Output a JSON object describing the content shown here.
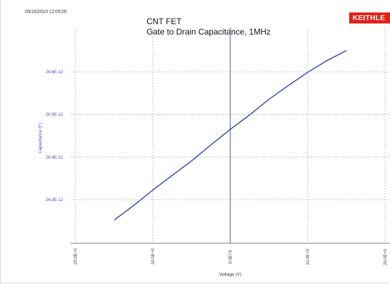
{
  "timestamp": "05/16/2010 12:05:05",
  "logo_text": "KEITHLE",
  "chart_data": {
    "type": "line",
    "title": "CNT FET",
    "subtitle": "Gate to Drain Capacitance, 1MHz",
    "xlabel": "Voltage (V)",
    "ylabel": "Capacitance (F)",
    "xlim": [
      -20,
      20
    ],
    "ylim": [
      2.62e-11,
      2.67e-11
    ],
    "x_ticks": [
      {
        "value": -20,
        "label": "-20.0E+0"
      },
      {
        "value": -10,
        "label": "-10.0E+0"
      },
      {
        "value": 0,
        "label": "0.0E+0"
      },
      {
        "value": 10,
        "label": "10.0E+0"
      },
      {
        "value": 20,
        "label": "20.0E+0"
      }
    ],
    "y_ticks": [
      {
        "value": 2.63e-11,
        "label": "26.3E-12"
      },
      {
        "value": 2.64e-11,
        "label": "26.4E-12"
      },
      {
        "value": 2.65e-11,
        "label": "26.5E-12"
      },
      {
        "value": 2.66e-11,
        "label": "26.6E-12"
      }
    ],
    "grid": true,
    "series": [
      {
        "color": "#3a4fb0",
        "x": [
          -15,
          -12.5,
          -10,
          -7.5,
          -5,
          -2.5,
          0,
          2.5,
          5,
          7.5,
          10,
          12.5,
          15
        ],
        "y": [
          2.6252e-11,
          2.6287e-11,
          2.6322e-11,
          2.6357e-11,
          2.6392e-11,
          2.6428e-11,
          2.6465e-11,
          2.65e-11,
          2.6535e-11,
          2.6568e-11,
          2.66e-11,
          2.6626e-11,
          2.665e-11
        ]
      }
    ],
    "axis_color": "#3a4fb0"
  }
}
